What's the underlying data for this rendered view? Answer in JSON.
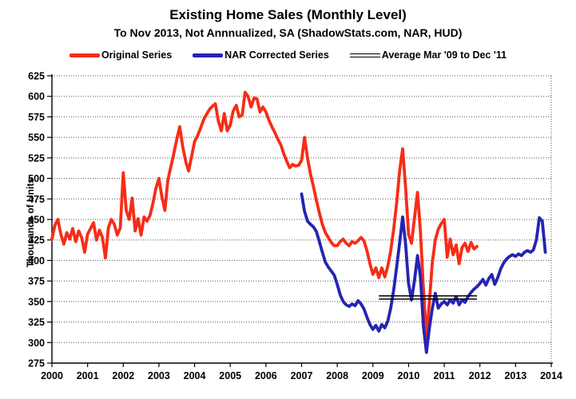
{
  "header": {
    "title": "Existing Home Sales (Monthly Level)",
    "subtitle": "To Nov 2013, Not Annnualized, SA (ShadowStats.com, NAR, HUD)"
  },
  "colors": {
    "original_series": "#f62d17",
    "nar_corrected_series": "#2424b4",
    "average_line": "#000000",
    "gridline": "#555555",
    "axis": "#000000",
    "background": "#ffffff"
  },
  "legend": [
    {
      "label": "Original Series",
      "swatch": "line",
      "color": "#f62d17"
    },
    {
      "label": "NAR Corrected Series",
      "swatch": "line",
      "color": "#2424b4"
    },
    {
      "label": "Average Mar '09 to Dec '11",
      "swatch": "double-line",
      "color": "#000000"
    }
  ],
  "chart_data": {
    "type": "line",
    "title": "Existing Home Sales (Monthly Level)",
    "subtitle": "To Nov 2013, Not Annnualized, SA (ShadowStats.com, NAR, HUD)",
    "xlabel": "",
    "ylabel": "Thousands of Units",
    "ylim": [
      275,
      625
    ],
    "xlim": [
      2000,
      2014
    ],
    "y_ticks": [
      275,
      300,
      325,
      350,
      375,
      400,
      425,
      450,
      475,
      500,
      525,
      550,
      575,
      600,
      625
    ],
    "x_ticks": [
      2000,
      2001,
      2002,
      2003,
      2004,
      2005,
      2006,
      2007,
      2008,
      2009,
      2010,
      2011,
      2012,
      2013,
      2014
    ],
    "grid": "horizontal-dotted",
    "legend_position": "top",
    "series": [
      {
        "name": "Original Series",
        "color": "#f62d17",
        "frequency": "monthly",
        "start_year": 2000,
        "start_month": 1,
        "end_label": "Dec 2011",
        "values": [
          426,
          443,
          450,
          432,
          420,
          434,
          426,
          439,
          423,
          436,
          428,
          410,
          432,
          439,
          446,
          425,
          437,
          428,
          403,
          440,
          450,
          444,
          431,
          440,
          507,
          461,
          450,
          476,
          436,
          451,
          431,
          453,
          448,
          455,
          470,
          488,
          500,
          478,
          461,
          498,
          514,
          530,
          548,
          563,
          539,
          521,
          509,
          527,
          545,
          552,
          561,
          571,
          578,
          584,
          588,
          591,
          570,
          558,
          579,
          558,
          565,
          582,
          589,
          575,
          577,
          605,
          600,
          587,
          598,
          597,
          581,
          587,
          581,
          571,
          563,
          556,
          548,
          541,
          530,
          521,
          513,
          517,
          515,
          516,
          522,
          550,
          525,
          505,
          490,
          473,
          458,
          444,
          434,
          428,
          422,
          418,
          418,
          423,
          426,
          421,
          418,
          423,
          421,
          424,
          428,
          424,
          412,
          396,
          383,
          391,
          379,
          391,
          380,
          393,
          412,
          438,
          470,
          510,
          536,
          489,
          432,
          421,
          452,
          483,
          435,
          365,
          307,
          350,
          398,
          425,
          438,
          445,
          450,
          404,
          426,
          407,
          419,
          396,
          416,
          421,
          411,
          422,
          414,
          417
        ]
      },
      {
        "name": "NAR Corrected Series",
        "color": "#2424b4",
        "frequency": "monthly",
        "start_year": 2007,
        "start_month": 1,
        "end_label": "Nov 2013",
        "values": [
          481,
          460,
          448,
          444,
          441,
          435,
          423,
          410,
          398,
          392,
          387,
          382,
          371,
          358,
          350,
          346,
          344,
          347,
          345,
          351,
          347,
          341,
          331,
          322,
          316,
          321,
          314,
          322,
          318,
          326,
          342,
          364,
          392,
          422,
          453,
          420,
          372,
          352,
          376,
          406,
          380,
          320,
          288,
          318,
          342,
          360,
          342,
          347,
          350,
          346,
          352,
          348,
          356,
          346,
          352,
          349,
          356,
          361,
          365,
          368,
          372,
          377,
          370,
          378,
          383,
          371,
          379,
          390,
          397,
          402,
          405,
          407,
          405,
          408,
          406,
          410,
          412,
          410,
          413,
          425,
          452,
          448,
          410
        ]
      }
    ],
    "average_line": {
      "label": "Average Mar '09 to Dec '11",
      "value": 355,
      "x_start": 2009.167,
      "x_end": 2011.917,
      "style": "double-black-line"
    }
  }
}
